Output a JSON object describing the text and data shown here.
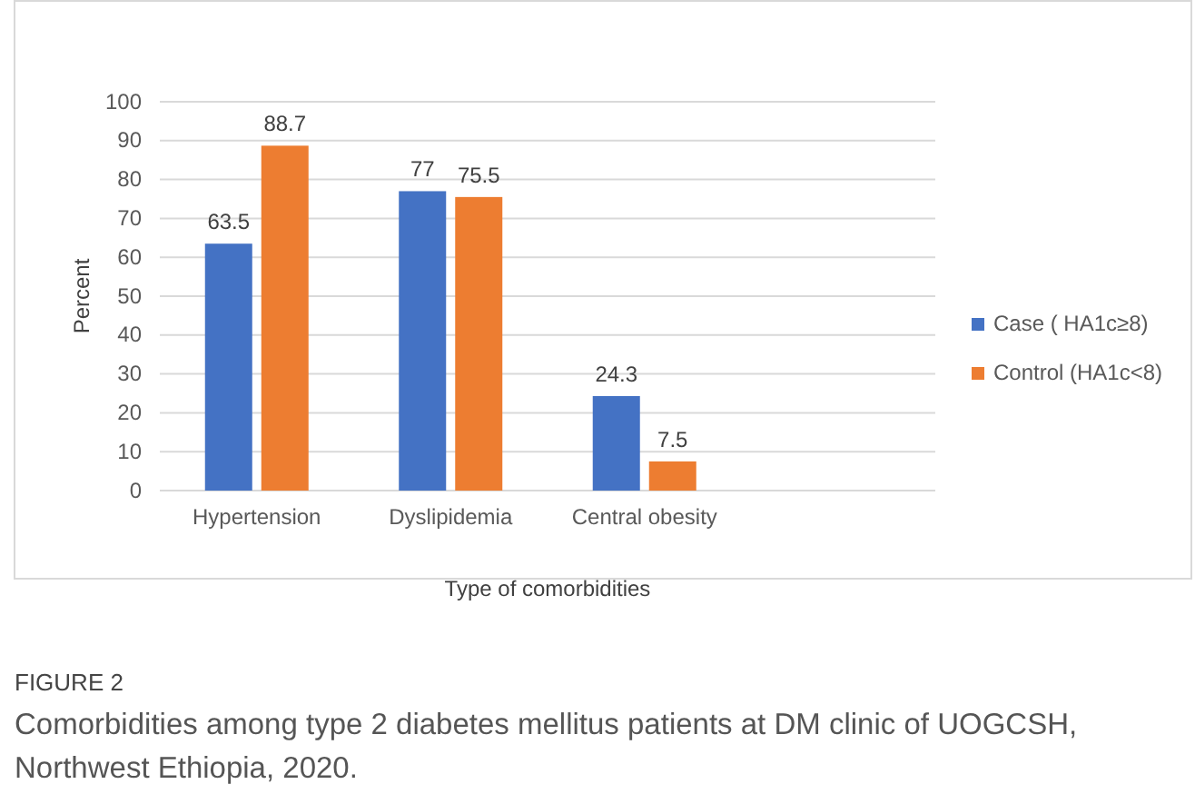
{
  "chart_data": {
    "type": "bar",
    "xlabel": "Type of comorbidities",
    "ylabel": "Percent",
    "categories": [
      "Hypertension",
      "Dyslipidemia",
      "Central obesity",
      null
    ],
    "series": [
      {
        "name": "Case ( HA1c≥8)",
        "color": "#4472c4",
        "values": [
          63.5,
          77,
          24.3,
          null
        ]
      },
      {
        "name": "Control (HA1c<8)",
        "color": "#ed7d31",
        "values": [
          88.7,
          75.5,
          7.5,
          null
        ]
      }
    ],
    "ylim": [
      0,
      100
    ],
    "yticks": [
      0,
      10,
      20,
      30,
      40,
      50,
      60,
      70,
      80,
      90,
      100
    ],
    "grid": "y",
    "legend": "right",
    "data_labels": true,
    "annotations": [
      "FIGURE 2",
      "Comorbidities among type 2 diabetes mellitus patients at DM clinic of UOGCSH, Northwest Ethiopia, 2020."
    ]
  }
}
